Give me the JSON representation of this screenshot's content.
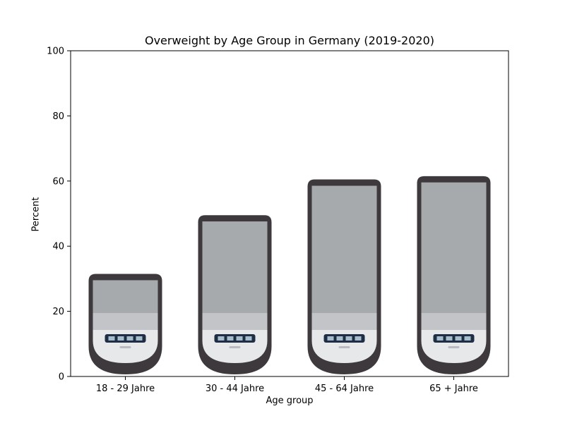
{
  "chart_data": {
    "type": "bar",
    "title": "Overweight by Age Group in Germany (2019-2020)",
    "xlabel": "Age group",
    "ylabel": "Percent",
    "categories": [
      "18 - 29 Jahre",
      "30 - 44 Jahre",
      "45 - 64 Jahre",
      "65 + Jahre"
    ],
    "values": [
      31.5,
      49.5,
      60.5,
      61.5
    ],
    "ylim": [
      0,
      100
    ],
    "yticks": [
      0,
      20,
      40,
      60,
      80,
      100
    ],
    "grid": false,
    "bar_style": "bathroom-scale images",
    "colors": {
      "scale_body": "#3d393c",
      "scale_panel": "#a7aaad",
      "scale_panel_light": "#c9cbcd",
      "scale_base": "#e6e8ea",
      "display": "#1e2f45",
      "display_text": "#d7eef8"
    }
  }
}
